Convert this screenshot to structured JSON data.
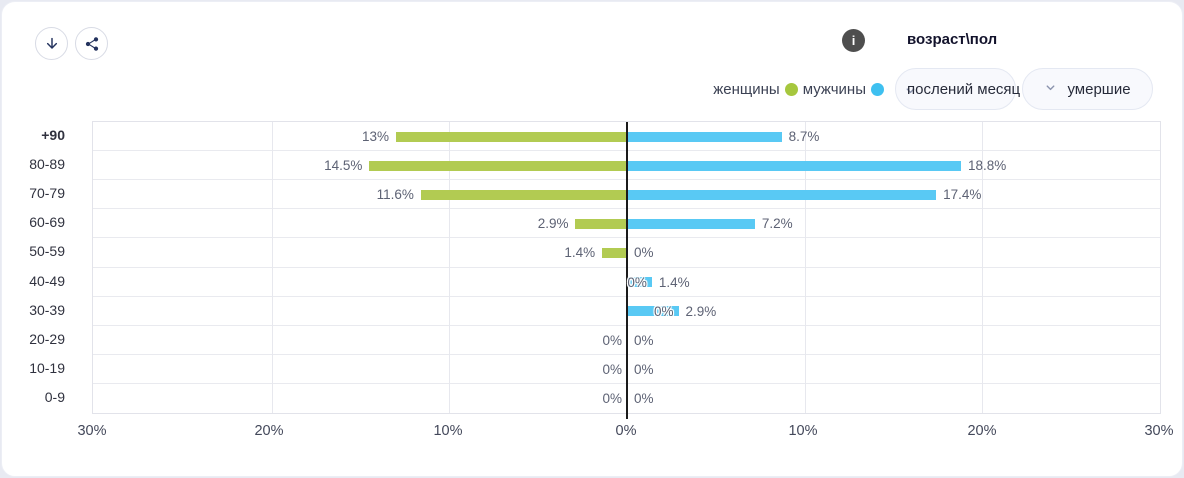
{
  "toolbar": {
    "download_icon": "download-arrow",
    "share_icon": "share-nodes"
  },
  "header": {
    "info_glyph": "i",
    "title": "возраст\\пол"
  },
  "legend": {
    "items": [
      {
        "label": "женщины",
        "color": "#a6c73e"
      },
      {
        "label": "мужчины",
        "color": "#3ec0f0"
      }
    ]
  },
  "filters": {
    "period": {
      "value": "послений месяц"
    },
    "metric": {
      "value": "умершие"
    }
  },
  "chart_data": {
    "type": "bar",
    "variant": "population-pyramid",
    "title": "возраст\\пол",
    "categories": [
      "+90",
      "80-89",
      "70-79",
      "60-69",
      "50-59",
      "40-49",
      "30-39",
      "20-29",
      "10-19",
      "0-9"
    ],
    "series": [
      {
        "name": "женщины",
        "side": "left",
        "color": "#b2cb52",
        "values": [
          13,
          14.5,
          11.6,
          2.9,
          1.4,
          0,
          0,
          0,
          0,
          0
        ]
      },
      {
        "name": "мужчины",
        "side": "right",
        "color": "#59c9f4",
        "values": [
          8.7,
          18.8,
          17.4,
          7.2,
          0,
          1.4,
          2.9,
          0,
          0,
          0
        ]
      }
    ],
    "value_suffix": "%",
    "x_ticks": [
      "30%",
      "20%",
      "10%",
      "0%",
      "10%",
      "20%",
      "30%"
    ],
    "xlim": [
      -30,
      30
    ],
    "grid": true,
    "legend_position": "top-right"
  }
}
